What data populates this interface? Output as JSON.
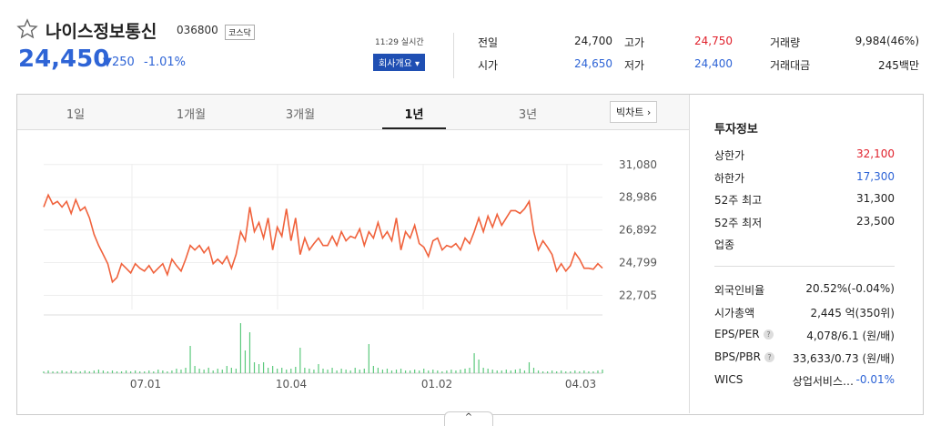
{
  "header": {
    "name": "나이스정보통신",
    "code": "036800",
    "market": "코스닥",
    "price": "24,450",
    "change": "250",
    "change_pct": "-1.01%",
    "time": "11:29 실시간",
    "button": "회사개요"
  },
  "quotes": [
    {
      "label": "전일",
      "value": "24,700"
    },
    {
      "label": "고가",
      "value": "24,750",
      "color": "#e0202b"
    },
    {
      "label": "거래량",
      "value": "9,984(46%)"
    },
    {
      "label": "시가",
      "value": "24,650",
      "color": "#2e64d6"
    },
    {
      "label": "저가",
      "value": "24,400",
      "color": "#2e64d6"
    },
    {
      "label": "거래대금",
      "value": "245백만"
    }
  ],
  "tabs": {
    "items": [
      "1일",
      "1개월",
      "3개월",
      "1년",
      "3년"
    ],
    "selected": 3,
    "bigchart": "빅차트"
  },
  "chart": {
    "type": "line",
    "x_labels": [
      "07.01",
      "10.04",
      "01.02",
      "04.03"
    ],
    "price": {
      "color": "#f0623c",
      "ylim": [
        21800,
        32000
      ],
      "yticks": [
        {
          "value": 31080,
          "label": "31,080"
        },
        {
          "value": 28986,
          "label": "28,986"
        },
        {
          "value": 26892,
          "label": "26,892"
        },
        {
          "value": 24799,
          "label": "24,799"
        },
        {
          "value": 22705,
          "label": "22,705"
        }
      ],
      "values": [
        28360,
        29130,
        28540,
        28720,
        28360,
        28720,
        27950,
        28830,
        28130,
        28360,
        27660,
        26610,
        25900,
        25320,
        24730,
        23560,
        23850,
        24730,
        24440,
        24140,
        24730,
        24440,
        24260,
        24610,
        24140,
        24440,
        24730,
        24030,
        25020,
        24610,
        24260,
        25020,
        25900,
        25610,
        25900,
        25430,
        25790,
        24730,
        25020,
        24730,
        25200,
        24440,
        25320,
        26780,
        26200,
        28360,
        26780,
        27370,
        26370,
        27660,
        25610,
        27070,
        26490,
        28250,
        26200,
        27660,
        25320,
        26370,
        25610,
        26020,
        26370,
        25900,
        25900,
        26490,
        25900,
        26780,
        26200,
        26490,
        26370,
        26960,
        25900,
        26780,
        26370,
        27370,
        26370,
        26780,
        26200,
        27660,
        25610,
        26780,
        26370,
        27190,
        26020,
        25790,
        25200,
        26200,
        26370,
        25610,
        25900,
        25790,
        26020,
        25610,
        26370,
        26020,
        26780,
        27660,
        26780,
        27780,
        27070,
        27890,
        27190,
        27660,
        28130,
        28130,
        27950,
        28250,
        28720,
        26780,
        25610,
        26200,
        25790,
        25320,
        24260,
        24730,
        24260,
        24610,
        25430,
        25020,
        24440,
        24440,
        24380,
        24730,
        24450
      ]
    },
    "volume": {
      "color": "#5bc97c",
      "ylim": [
        0,
        60
      ],
      "values": [
        2,
        3,
        2,
        2,
        3,
        2,
        3,
        2,
        2,
        3,
        2,
        3,
        4,
        3,
        2,
        3,
        2,
        2,
        3,
        2,
        3,
        2,
        2,
        3,
        2,
        4,
        3,
        2,
        3,
        5,
        4,
        6,
        30,
        8,
        5,
        4,
        6,
        3,
        5,
        4,
        8,
        6,
        5,
        55,
        25,
        45,
        12,
        10,
        12,
        6,
        8,
        5,
        6,
        4,
        5,
        7,
        28,
        6,
        5,
        4,
        10,
        5,
        4,
        6,
        3,
        5,
        4,
        3,
        6,
        4,
        5,
        32,
        8,
        6,
        4,
        5,
        3,
        4,
        5,
        3,
        3,
        4,
        3,
        5,
        3,
        4,
        3,
        2,
        3,
        4,
        3,
        4,
        5,
        6,
        22,
        15,
        6,
        5,
        4,
        3,
        3,
        4,
        3,
        4,
        5,
        3,
        12,
        6,
        3,
        2,
        2,
        3,
        2,
        3,
        2,
        2,
        3,
        2,
        3,
        2,
        2,
        3,
        4
      ]
    }
  },
  "invest": {
    "title": "투자정보",
    "rows1": [
      {
        "label": "상한가",
        "value": "32,100",
        "color": "#e0202b"
      },
      {
        "label": "하한가",
        "value": "17,300",
        "color": "#2e64d6"
      },
      {
        "label": "52주 최고",
        "value": "31,300"
      },
      {
        "label": "52주 최저",
        "value": "23,500"
      },
      {
        "label": "업종"
      }
    ],
    "rows2": [
      {
        "label": "외국인비율",
        "value": "20.52%(-0.04%)"
      },
      {
        "label": "시가총액",
        "value": "2,445 억(350위)"
      },
      {
        "label": "EPS/PER",
        "help": true,
        "value": "4,078/6.1 (원/배)"
      },
      {
        "label": "BPS/PBR",
        "help": true,
        "value": "33,633/0.73 (원/배)"
      },
      {
        "label": "WICS",
        "value": "상업서비스…",
        "extra": "-0.01%"
      }
    ]
  }
}
